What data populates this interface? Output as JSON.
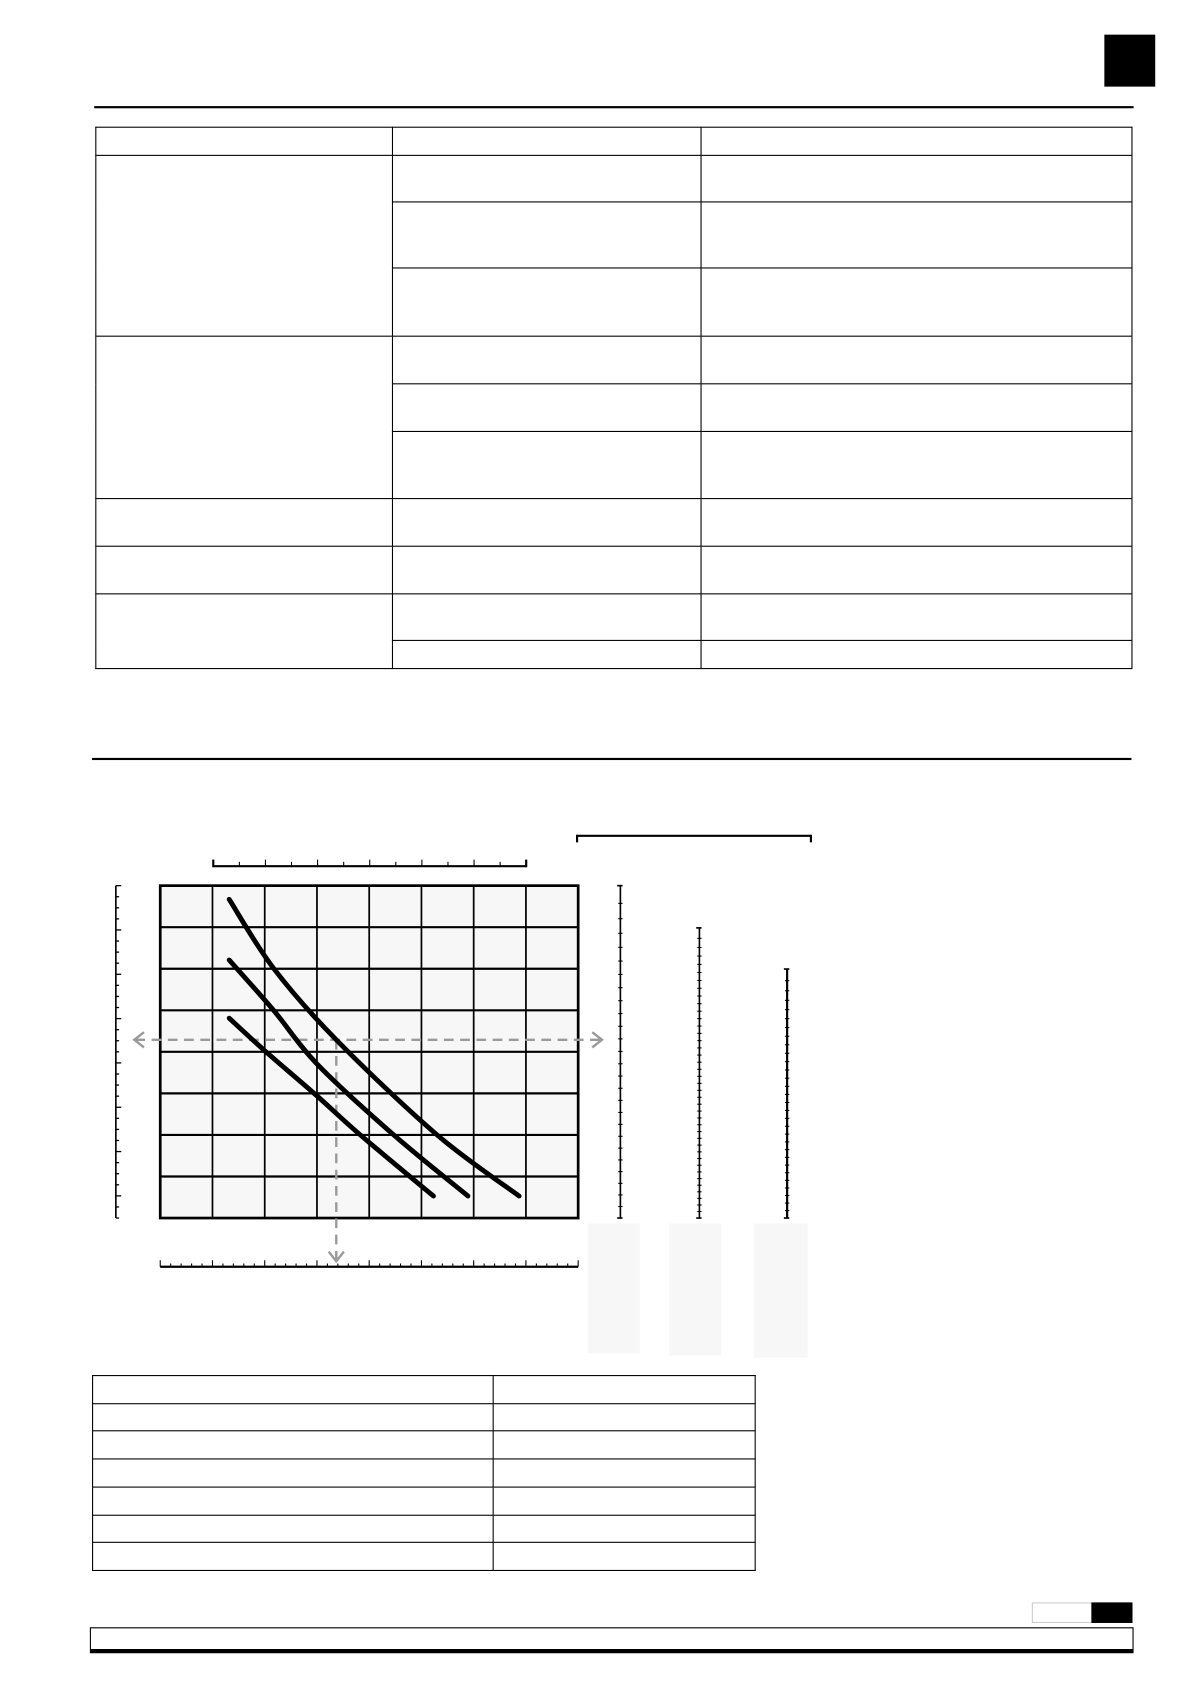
{
  "colors": {
    "ink": "#000000",
    "grid_fill": "#f7f7f7",
    "guide": "#9a9a9a",
    "blank_column": "#f7f7f7"
  },
  "table_top": {
    "columns": 3,
    "header": [
      "",
      "",
      ""
    ],
    "groups": [
      {
        "label": "",
        "rows": [
          [
            "",
            ""
          ],
          [
            "",
            ""
          ],
          [
            "",
            ""
          ]
        ]
      },
      {
        "label": "",
        "rows": [
          [
            "",
            ""
          ],
          [
            "",
            ""
          ],
          [
            "",
            ""
          ]
        ]
      },
      {
        "label": "",
        "rows": [
          [
            "",
            ""
          ]
        ]
      },
      {
        "label": "",
        "rows": [
          [
            "",
            ""
          ]
        ]
      },
      {
        "label": "",
        "rows": [
          [
            "",
            ""
          ],
          [
            "",
            ""
          ]
        ]
      }
    ]
  },
  "table_bottom": {
    "rows": [
      [
        "",
        ""
      ],
      [
        "",
        ""
      ],
      [
        "",
        ""
      ],
      [
        "",
        ""
      ],
      [
        "",
        ""
      ],
      [
        "",
        ""
      ],
      [
        "",
        ""
      ]
    ]
  },
  "chart_data": {
    "type": "line",
    "title": "",
    "xlabel": "",
    "ylabel": "",
    "xlim": [
      0,
      8
    ],
    "ylim": [
      0,
      8
    ],
    "grid": true,
    "series": [
      {
        "points": [
          [
            1.32,
            7.67
          ],
          [
            2.17,
            6.01
          ],
          [
            3.37,
            4.29
          ],
          [
            5.3,
            2.0
          ],
          [
            6.87,
            0.53
          ]
        ]
      },
      {
        "points": [
          [
            1.32,
            6.21
          ],
          [
            2.17,
            5.0
          ],
          [
            3.0,
            3.71
          ],
          [
            4.47,
            2.0
          ],
          [
            5.89,
            0.53
          ]
        ]
      },
      {
        "points": [
          [
            1.32,
            4.81
          ],
          [
            1.98,
            4.05
          ],
          [
            3.0,
            2.94
          ],
          [
            3.83,
            2.0
          ],
          [
            5.23,
            0.53
          ]
        ]
      }
    ],
    "guides": {
      "horizontal_y": 4.29,
      "vertical_x": 3.37
    }
  }
}
